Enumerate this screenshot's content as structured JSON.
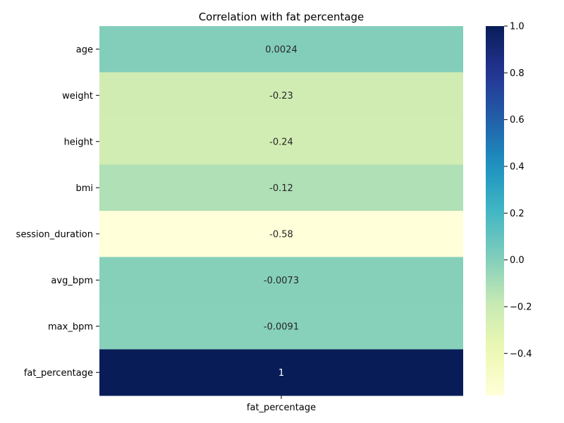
{
  "chart_data": {
    "type": "heatmap",
    "title": "Correlation with fat percentage",
    "rows": [
      "age",
      "weight",
      "height",
      "bmi",
      "session_duration",
      "avg_bpm",
      "max_bpm",
      "fat_percentage"
    ],
    "columns": [
      "fat_percentage"
    ],
    "values": [
      0.0024,
      -0.23,
      -0.24,
      -0.12,
      -0.58,
      -0.0073,
      -0.0091,
      1
    ],
    "labels": [
      "0.0024",
      "-0.23",
      "-0.24",
      "-0.12",
      "-0.58",
      "-0.0073",
      "-0.0091",
      "1"
    ],
    "colormap": "YlGnBu",
    "colorbar": {
      "range": [
        -0.58,
        1.0
      ],
      "ticks": [
        1.0,
        0.8,
        0.6,
        0.4,
        0.2,
        0.0,
        -0.2,
        -0.4
      ],
      "tick_labels": [
        "1.0",
        "0.8",
        "0.6",
        "0.4",
        "0.2",
        "0.0",
        "−0.2",
        "−0.4"
      ]
    }
  }
}
